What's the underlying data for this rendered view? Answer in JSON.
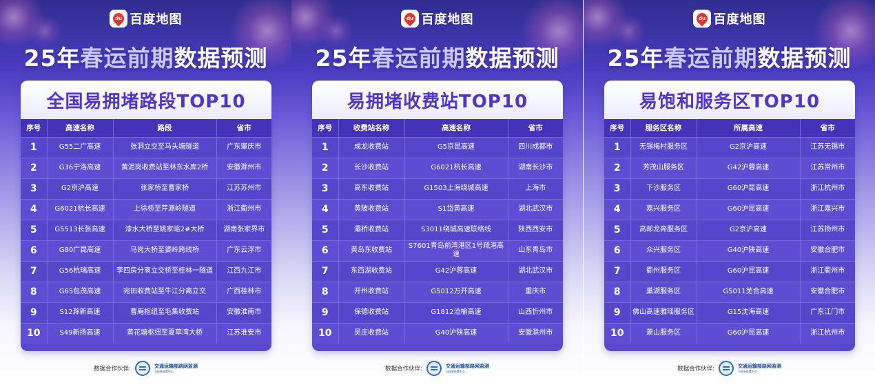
{
  "brand": "百度地图",
  "headline": {
    "prefix": "25年",
    "highlight": "春运前期",
    "suffix": "数据预测"
  },
  "partner": {
    "label": "数据合作伙伴:",
    "name_line1": "交通运输部路网监测",
    "name_line2": "与应急处置中心"
  },
  "panels": [
    {
      "title": "全国易拥堵路段TOP10",
      "headers": [
        "序号",
        "高速名称",
        "路段",
        "省市"
      ],
      "rows": [
        [
          "1",
          "G55二广高速",
          "张洞立交至马头塘隧道",
          "广东肇庆市"
        ],
        [
          "2",
          "G36宁洛高速",
          "黄泥岗收费站至林东水库2桥",
          "安徽滁州市"
        ],
        [
          "3",
          "G2京沪高速",
          "张家桥至曹家桥",
          "江苏苏州市"
        ],
        [
          "4",
          "G6021杭长高速",
          "上徐桥至芹源岭隧道",
          "浙江衢州市"
        ],
        [
          "5",
          "G5513长张高速",
          "漆水大桥至姚家峪2#大桥",
          "湖南张家界市"
        ],
        [
          "6",
          "G80广昆高速",
          "马岗大桥至婆岭跨线桥",
          "广东云浮市"
        ],
        [
          "7",
          "G56杭瑞高速",
          "李四房分离立交桥至桂林一隧道",
          "江西九江市"
        ],
        [
          "8",
          "G65包茂高速",
          "宛田收费站至牛江分离立交",
          "广西桂林市"
        ],
        [
          "9",
          "S12滁新高速",
          "曹庵枢纽至毛集收费站",
          "安徽淮南市"
        ],
        [
          "10",
          "S49新扬高速",
          "黄花塘枢纽至夏草湾大桥",
          "江苏淮安市"
        ]
      ]
    },
    {
      "title": "易拥堵收费站TOP10",
      "headers": [
        "序号",
        "收费站名称",
        "高速名称",
        "省市"
      ],
      "rows": [
        [
          "1",
          "成龙收费站",
          "G5京昆高速",
          "四川成都市"
        ],
        [
          "2",
          "长沙收费站",
          "G6021杭长高速",
          "湖南长沙市"
        ],
        [
          "3",
          "高东收费站",
          "G1503上海绕城高速",
          "上海市"
        ],
        [
          "4",
          "黄陂收费站",
          "S1岱黄高速",
          "湖北武汉市"
        ],
        [
          "5",
          "灞桥收费站",
          "S3011绕城高速联络线",
          "陕西西安市"
        ],
        [
          "6",
          "黄岛东收费站",
          "S7601青岛前湾港区1号疏港高速",
          "山东青岛市"
        ],
        [
          "7",
          "东西湖收费站",
          "G42沪蓉高速",
          "湖北武汉市"
        ],
        [
          "8",
          "开州收费站",
          "G5012万开高速",
          "重庆市"
        ],
        [
          "9",
          "保德收费站",
          "G1812沧榆高速",
          "山西忻州市"
        ],
        [
          "10",
          "吴庄收费站",
          "G40沪陕高速",
          "安徽滁州市"
        ]
      ]
    },
    {
      "title": "易饱和服务区TOP10",
      "headers": [
        "序号",
        "服务区名称",
        "所属高速",
        "省市"
      ],
      "rows": [
        [
          "1",
          "无锡梅村服务区",
          "G2京沪高速",
          "江苏无锡市"
        ],
        [
          "2",
          "芳茂山服务区",
          "G42沪蓉高速",
          "江苏常州市"
        ],
        [
          "3",
          "下沙服务区",
          "G60沪昆高速",
          "浙江杭州市"
        ],
        [
          "4",
          "嘉兴服务区",
          "G60沪昆高速",
          "浙江嘉兴市"
        ],
        [
          "5",
          "高邮龙奔服务区",
          "G2京沪高速",
          "江苏扬州市"
        ],
        [
          "6",
          "众兴服务区",
          "G40沪陕高速",
          "安徽合肥市"
        ],
        [
          "7",
          "衢州服务区",
          "G60沪昆高速",
          "浙江衢州市"
        ],
        [
          "8",
          "巢湖服务区",
          "G5011芜合高速",
          "安徽合肥市"
        ],
        [
          "9",
          "佛山高速雅瑶服务区",
          "G15沈海高速",
          "广东江门市"
        ],
        [
          "10",
          "萧山服务区",
          "G60沪昆高速",
          "浙江杭州市"
        ]
      ]
    }
  ]
}
